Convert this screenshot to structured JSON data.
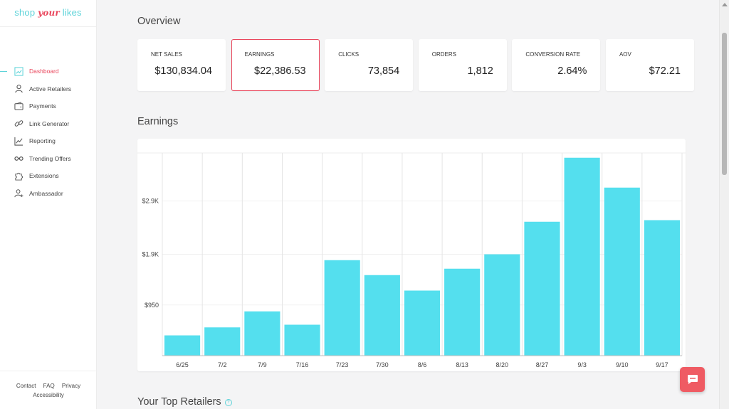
{
  "brand": {
    "part1": "shop ",
    "part2": "your",
    "part3": " likes"
  },
  "sidebar": {
    "items": [
      {
        "label": "Dashboard",
        "icon": "dashboard-icon",
        "active": true
      },
      {
        "label": "Active Retailers",
        "icon": "user-icon",
        "active": false
      },
      {
        "label": "Payments",
        "icon": "wallet-icon",
        "active": false
      },
      {
        "label": "Link Generator",
        "icon": "link-icon",
        "active": false
      },
      {
        "label": "Reporting",
        "icon": "chart-line-icon",
        "active": false
      },
      {
        "label": "Trending Offers",
        "icon": "glasses-icon",
        "active": false
      },
      {
        "label": "Extensions",
        "icon": "puzzle-icon",
        "active": false
      },
      {
        "label": "Ambassador",
        "icon": "user-add-icon",
        "active": false
      }
    ],
    "footer": {
      "contact": "Contact",
      "faq": "FAQ",
      "privacy": "Privacy",
      "accessibility": "Accessibility"
    }
  },
  "overview": {
    "title": "Overview",
    "cards": [
      {
        "label": "NET SALES",
        "value": "$130,834.04",
        "selected": false
      },
      {
        "label": "EARNINGS",
        "value": "$22,386.53",
        "selected": true
      },
      {
        "label": "CLICKS",
        "value": "73,854",
        "selected": false
      },
      {
        "label": "ORDERS",
        "value": "1,812",
        "selected": false
      },
      {
        "label": "CONVERSION RATE",
        "value": "2.64%",
        "selected": false
      },
      {
        "label": "AOV",
        "value": "$72.21",
        "selected": false
      }
    ]
  },
  "earnings": {
    "title": "Earnings"
  },
  "top_retailers": {
    "title": "Your Top Retailers",
    "help_glyph": "?"
  },
  "colors": {
    "bar": "#54dfee",
    "accent": "#e9465c",
    "chat": "#ef5b63"
  },
  "chart_data": {
    "type": "bar",
    "categories": [
      "6/25",
      "7/2",
      "7/9",
      "7/16",
      "7/23",
      "7/30",
      "8/6",
      "8/13",
      "8/20",
      "8/27",
      "9/3",
      "9/10",
      "9/17"
    ],
    "values": [
      380,
      530,
      830,
      580,
      1790,
      1510,
      1220,
      1630,
      1900,
      2510,
      3710,
      3150,
      2540
    ],
    "yticks": [
      950,
      1900,
      2900
    ],
    "ytick_labels": [
      "$950",
      "$1.9K",
      "$2.9K"
    ],
    "ylim": [
      0,
      3800
    ],
    "grid": true
  }
}
